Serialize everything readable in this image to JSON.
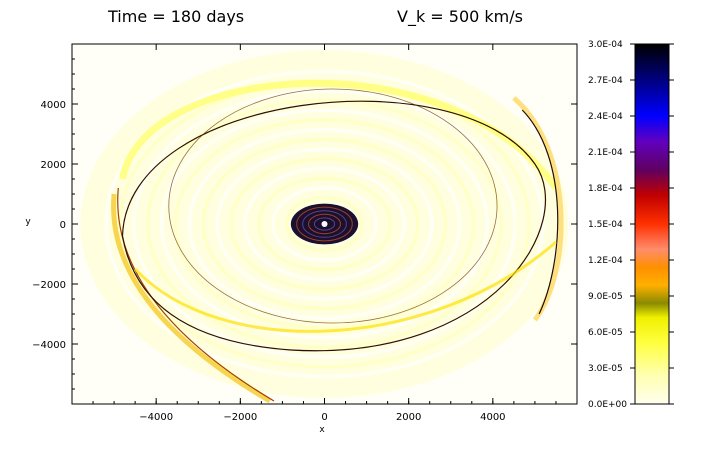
{
  "chart_data": {
    "type": "heatmap",
    "title_left": "Time = 180 days",
    "title_right": "V_k = 500 km/s",
    "xlabel": "x",
    "ylabel": "y",
    "xlim": [
      -6000,
      6000
    ],
    "ylim": [
      -6000,
      6000
    ],
    "x_ticks": [
      {
        "value": -4000,
        "label": "−4000"
      },
      {
        "value": -2000,
        "label": "−2000"
      },
      {
        "value": 0,
        "label": "0"
      },
      {
        "value": 2000,
        "label": "2000"
      },
      {
        "value": 4000,
        "label": "4000"
      }
    ],
    "y_ticks": [
      {
        "value": 4000,
        "label": "4000"
      },
      {
        "value": 2000,
        "label": "2000"
      },
      {
        "value": 0,
        "label": "0"
      },
      {
        "value": -2000,
        "label": "−2000"
      },
      {
        "value": -4000,
        "label": "−4000"
      }
    ],
    "colorbar": {
      "range": [
        0,
        0.0003
      ],
      "tick_labels": [
        "3.0E-04",
        "2.7E-04",
        "2.4E-04",
        "2.1E-04",
        "1.8E-04",
        "1.5E-04",
        "1.2E-04",
        "9.0E-05",
        "6.0E-05",
        "3.0E-05",
        "0.0E+00"
      ],
      "colors": {
        "c0": "#ffffe8",
        "c1": "#ffff40",
        "c2": "#e8e800",
        "c3": "#9a9a00",
        "c4": "#ffa000",
        "c5": "#ff8060",
        "c6": "#ff2000",
        "c7": "#a00020",
        "c8": "#5a0080",
        "c9": "#0000ff",
        "c10": "#000060",
        "c11": "#000000"
      }
    },
    "features": {
      "central_core": {
        "center": [
          0,
          0
        ],
        "radius": 800
      },
      "ring_outer": {
        "center": [
          0,
          0
        ],
        "radius_x": 4700,
        "radius_y": 4700
      },
      "ring_inner": {
        "center": [
          0,
          0
        ],
        "radius_x": 3900,
        "radius_y": 3200
      },
      "spiral_arm_note": "dark thin shell extending from lower-left to upper-right"
    },
    "grid": false,
    "legend_position": "right"
  }
}
